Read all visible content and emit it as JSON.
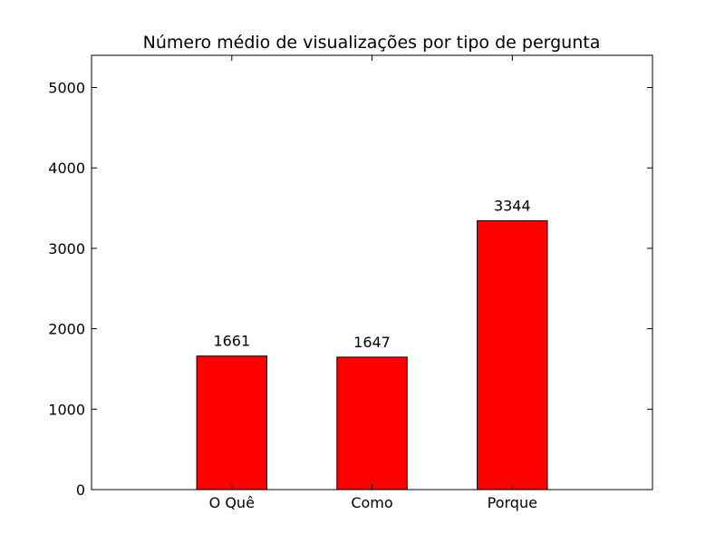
{
  "chart_data": {
    "type": "bar",
    "title": "Número médio de visualizações por tipo de pergunta",
    "xlabel": "",
    "ylabel": "",
    "categories": [
      "O Quê",
      "Como",
      "Porque"
    ],
    "values": [
      1661,
      1647,
      3344
    ],
    "data_labels": [
      "1661",
      "1647",
      "3344"
    ],
    "ylim": [
      0,
      5400
    ],
    "yticks": [
      0,
      1000,
      2000,
      3000,
      4000,
      5000
    ],
    "ytick_labels": [
      "0",
      "1000",
      "2000",
      "3000",
      "4000",
      "5000"
    ],
    "bar_color": "#ff0000",
    "edge_color": "#000000",
    "grid": false,
    "legend": "none"
  }
}
